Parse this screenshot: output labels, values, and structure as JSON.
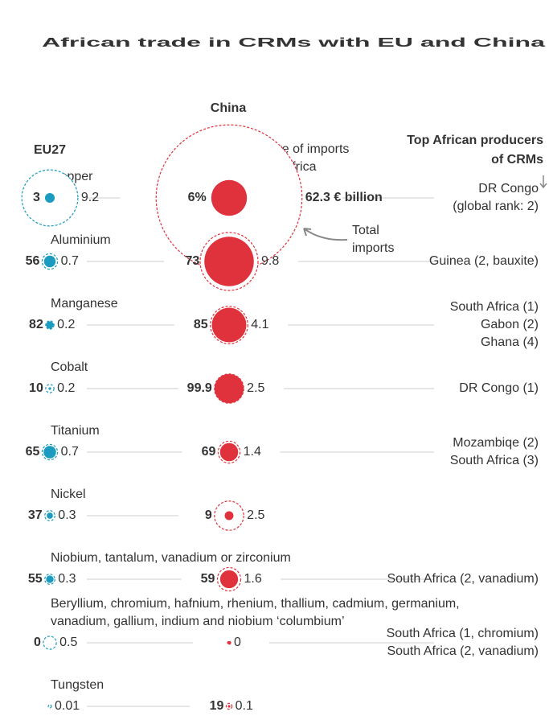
{
  "chart_data": {
    "type": "bubble",
    "title": "African trade in CRMs with EU and China",
    "annotations": {
      "china": "China",
      "eu": "EU27",
      "share": [
        "Share of imports",
        "from Africa"
      ],
      "total": [
        "Total",
        "imports"
      ],
      "producers": [
        "Top African producers",
        "of CRMs"
      ]
    },
    "categories": [
      [
        "Copper"
      ],
      [
        "Aluminium"
      ],
      [
        "Manganese"
      ],
      [
        "Cobalt"
      ],
      [
        "Titanium"
      ],
      [
        "Nickel"
      ],
      [
        "Niobium, tantalum, vanadium or zirconium"
      ],
      [
        "Beryllium, chromium, hafnium, rhenium, thallium, cadmium, germanium,",
        "vanadium, gallium, indium and niobium ‘columbium’"
      ],
      [
        "Tungsten"
      ]
    ],
    "producers": [
      [
        "DR Congo",
        "(global rank: 2)"
      ],
      [
        "Guinea (2, bauxite)"
      ],
      [
        "South Africa (1)",
        "Gabon (2)",
        "Ghana (4)"
      ],
      [
        "DR Congo (1)"
      ],
      [
        "Mozambiqe (2)",
        "South Africa (3)"
      ],
      [],
      [
        "South Africa (2, vanadium)"
      ],
      [
        "South Africa (1, chromium)",
        "South Africa (2, vanadium)"
      ],
      []
    ],
    "series": [
      {
        "name": "EU27",
        "color": "#1a9bbf",
        "share": [
          3,
          56,
          82,
          10,
          65,
          37,
          55,
          0,
          null
        ],
        "total": [
          9.2,
          0.7,
          0.2,
          0.2,
          0.7,
          0.3,
          0.3,
          0.5,
          0.01
        ]
      },
      {
        "name": "China",
        "color": "#e0323c",
        "share": [
          6,
          73,
          85,
          99.9,
          69,
          9,
          59,
          null,
          19
        ],
        "share_labels": [
          "6%",
          "73",
          "85",
          "99.9",
          "69",
          "9",
          "59",
          null,
          "19"
        ],
        "total": [
          62.3,
          9.8,
          4.1,
          2.5,
          1.4,
          2.5,
          1.6,
          0,
          0.1
        ],
        "total_labels": [
          "62.3 € billion",
          "9.8",
          "4.1",
          "2.5",
          "1.4",
          "2.5",
          "1.6",
          "0",
          "0.1"
        ]
      }
    ]
  }
}
